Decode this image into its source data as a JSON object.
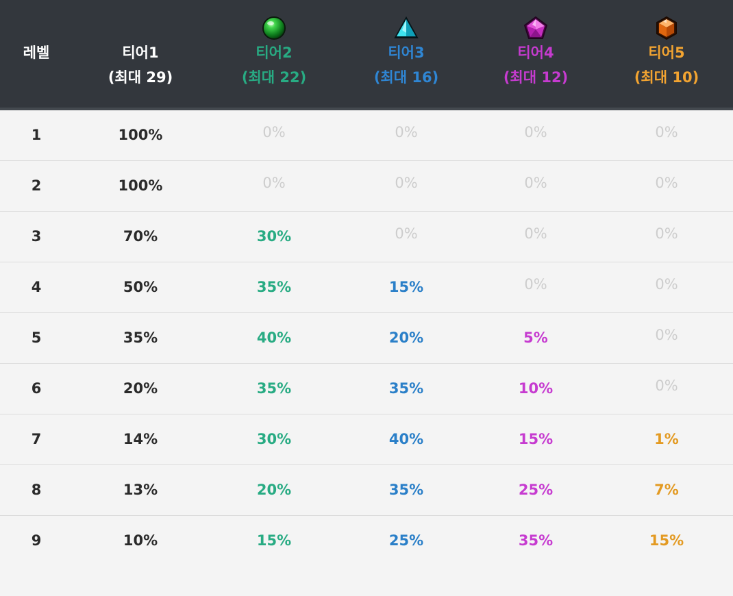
{
  "header": {
    "level": "레벨",
    "tiers": [
      {
        "name": "티어1",
        "max": "(최대 29)",
        "color": "#ffffff",
        "icon": null
      },
      {
        "name": "티어2",
        "max": "(최대 22)",
        "color": "#28ab83",
        "icon": "green-orb-icon"
      },
      {
        "name": "티어3",
        "max": "(최대 16)",
        "color": "#2f86d4",
        "icon": "cyan-pyramid-icon"
      },
      {
        "name": "티어4",
        "max": "(최대 12)",
        "color": "#c63bd0",
        "icon": "magenta-pentagon-gem-icon"
      },
      {
        "name": "티어5",
        "max": "(최대 10)",
        "color": "#f3a431",
        "icon": "orange-hexagon-gem-icon"
      }
    ]
  },
  "rows": [
    {
      "level": "1",
      "t1": "100%",
      "t2": "0%",
      "t3": "0%",
      "t4": "0%",
      "t5": "0%"
    },
    {
      "level": "2",
      "t1": "100%",
      "t2": "0%",
      "t3": "0%",
      "t4": "0%",
      "t5": "0%"
    },
    {
      "level": "3",
      "t1": "70%",
      "t2": "30%",
      "t3": "0%",
      "t4": "0%",
      "t5": "0%"
    },
    {
      "level": "4",
      "t1": "50%",
      "t2": "35%",
      "t3": "15%",
      "t4": "0%",
      "t5": "0%"
    },
    {
      "level": "5",
      "t1": "35%",
      "t2": "40%",
      "t3": "20%",
      "t4": "5%",
      "t5": "0%"
    },
    {
      "level": "6",
      "t1": "20%",
      "t2": "35%",
      "t3": "35%",
      "t4": "10%",
      "t5": "0%"
    },
    {
      "level": "7",
      "t1": "14%",
      "t2": "30%",
      "t3": "40%",
      "t4": "15%",
      "t5": "1%"
    },
    {
      "level": "8",
      "t1": "13%",
      "t2": "20%",
      "t3": "35%",
      "t4": "25%",
      "t5": "7%"
    },
    {
      "level": "9",
      "t1": "10%",
      "t2": "15%",
      "t3": "25%",
      "t4": "35%",
      "t5": "15%"
    }
  ]
}
